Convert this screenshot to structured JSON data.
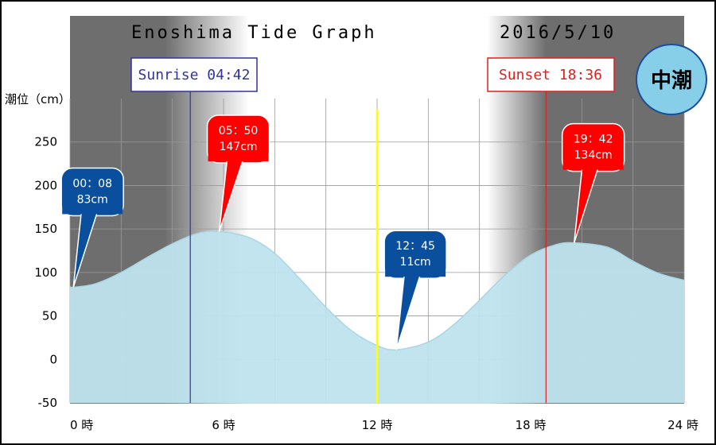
{
  "chart_data": {
    "type": "area",
    "title": "Enoshima Tide Graph",
    "date": "2016/5/10",
    "tide_badge": "中潮",
    "ylabel": "潮位（cm）",
    "xlim": [
      0,
      24
    ],
    "ylim": [
      -50,
      300
    ],
    "y_ticks": [
      -50,
      0,
      50,
      100,
      150,
      200,
      250
    ],
    "x_ticks": [
      {
        "value": 0,
        "label": "0 時"
      },
      {
        "value": 6,
        "label": "6 時"
      },
      {
        "value": 12,
        "label": "12 時"
      },
      {
        "value": 18,
        "label": "18 時"
      },
      {
        "value": 24,
        "label": "24 時"
      }
    ],
    "grid": true,
    "series": [
      {
        "x": [
          0,
          0.13,
          1,
          2,
          3,
          4,
          5,
          5.83,
          7,
          8,
          9,
          10,
          11,
          12,
          12.75,
          14,
          15,
          16,
          17,
          18,
          19,
          19.7,
          21,
          22,
          23,
          24
        ],
        "y": [
          84,
          83,
          87,
          100,
          117,
          133,
          145,
          147,
          140,
          122,
          92,
          60,
          33,
          16,
          11,
          20,
          40,
          68,
          97,
          120,
          132,
          134,
          129,
          113,
          99,
          91
        ]
      }
    ],
    "events": [
      {
        "kind": "low",
        "time_label": "00：08",
        "level_label": "83cm",
        "x": 0.13,
        "y": 83,
        "color": "#0a4f9e"
      },
      {
        "kind": "high",
        "time_label": "05：50",
        "level_label": "147cm",
        "x": 5.83,
        "y": 147,
        "color": "#ff0000"
      },
      {
        "kind": "low",
        "time_label": "12：45",
        "level_label": "11cm",
        "x": 12.75,
        "y": 11,
        "color": "#0a4f9e"
      },
      {
        "kind": "high",
        "time_label": "19：42",
        "level_label": "134cm",
        "x": 19.7,
        "y": 134,
        "color": "#ff0000"
      }
    ],
    "sunrise": {
      "label": "Sunrise 04:42",
      "hour": 4.7,
      "color": "#333399"
    },
    "sunset": {
      "label": "Sunset 18:36",
      "hour": 18.6,
      "color": "#e02020"
    },
    "noon_hour": 12,
    "colors": {
      "tide": "#bfe3ee",
      "night": "#6e6e6e",
      "day": "#ffffff",
      "noon_line": "#ffff00",
      "badge": "#87cee8"
    }
  }
}
